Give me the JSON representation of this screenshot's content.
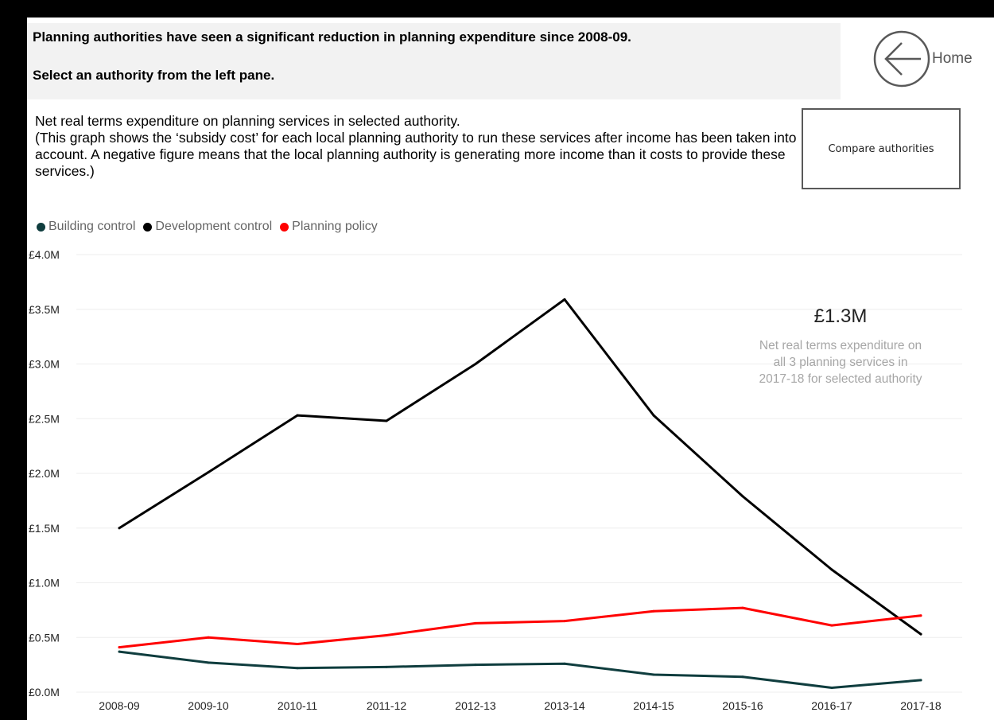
{
  "header": {
    "headline": "Planning authorities have seen a significant reduction in planning expenditure since 2008-09.",
    "instruction": "Select an authority from the left pane."
  },
  "nav": {
    "home_label": "Home",
    "compare_label": "Compare authorities"
  },
  "description": {
    "line1": "Net real terms expenditure on planning services in selected authority.",
    "line2": "(This graph shows the ‘subsidy cost’ for each local planning authority to run these services after income has been taken into account. A negative figure means that the local planning authority is generating more income than it costs to provide these services.)"
  },
  "kpi": {
    "value": "£1.3M",
    "caption_lines": [
      "Net real terms expenditure on",
      "all 3 planning services in",
      "2017-18 for selected authority"
    ]
  },
  "colors": {
    "building_control": "#0f3d3e",
    "development_control": "#000000",
    "planning_policy": "#ff0000",
    "gridline": "#eeeeee",
    "axis_text": "#222222"
  },
  "chart_data": {
    "type": "line",
    "title": "",
    "xlabel": "",
    "ylabel": "",
    "categories": [
      "2008-09",
      "2009-10",
      "2010-11",
      "2011-12",
      "2012-13",
      "2013-14",
      "2014-15",
      "2015-16",
      "2016-17",
      "2017-18"
    ],
    "y_ticks": [
      0,
      0.5,
      1.0,
      1.5,
      2.0,
      2.5,
      3.0,
      3.5,
      4.0
    ],
    "y_tick_labels": [
      "£0.0M",
      "£0.5M",
      "£1.0M",
      "£1.5M",
      "£2.0M",
      "£2.5M",
      "£3.0M",
      "£3.5M",
      "£4.0M"
    ],
    "ylim": [
      0,
      4.0
    ],
    "grid": true,
    "legend_position": "top-left",
    "series": [
      {
        "name": "Building control",
        "color": "#0f3d3e",
        "values": [
          0.37,
          0.27,
          0.22,
          0.23,
          0.25,
          0.26,
          0.16,
          0.14,
          0.04,
          0.11
        ]
      },
      {
        "name": "Development control",
        "color": "#000000",
        "values": [
          1.5,
          2.01,
          2.53,
          2.48,
          3.0,
          3.59,
          2.53,
          1.79,
          1.12,
          0.53
        ]
      },
      {
        "name": "Planning policy",
        "color": "#ff0000",
        "values": [
          0.41,
          0.5,
          0.44,
          0.52,
          0.63,
          0.65,
          0.74,
          0.77,
          0.61,
          0.7
        ]
      }
    ]
  }
}
